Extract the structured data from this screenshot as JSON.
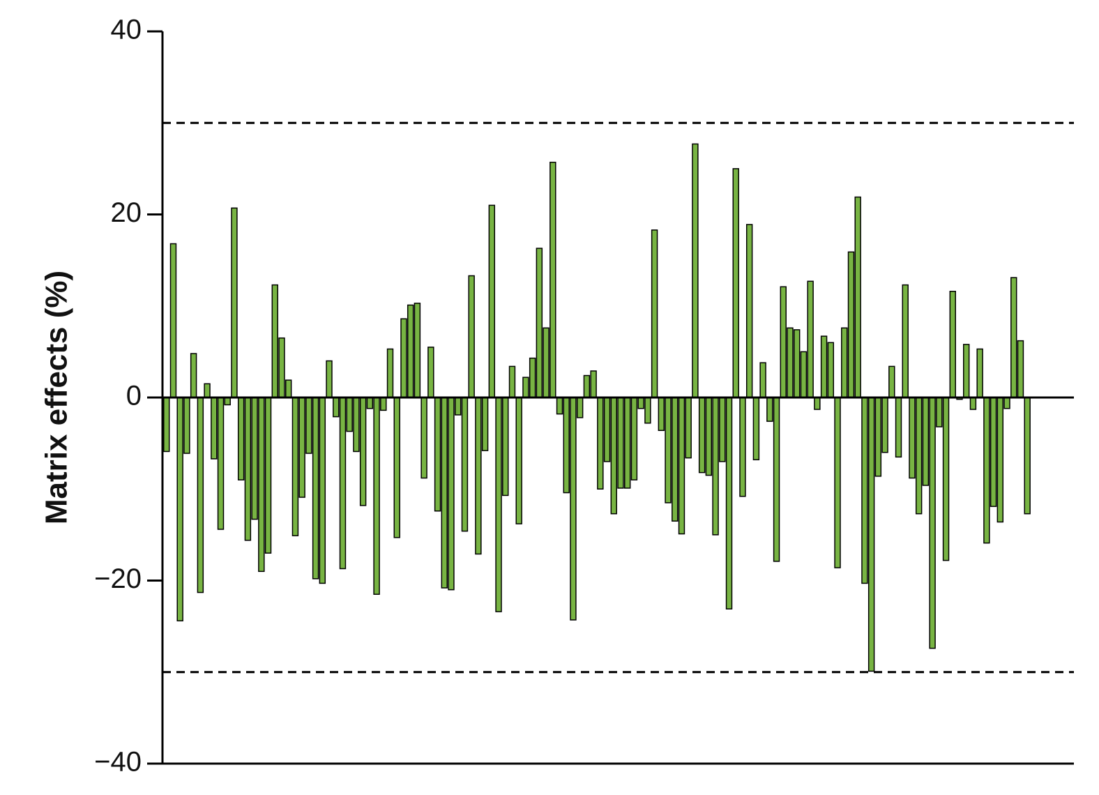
{
  "chart_data": {
    "type": "bar",
    "y_label": "Matrix effects (%)",
    "color": "#78b443",
    "ylim": [
      -40,
      40
    ],
    "yticks": [
      {
        "value": -40,
        "label": "−40"
      },
      {
        "value": -20,
        "label": "−20"
      },
      0,
      20,
      40
    ],
    "reference_lines": [
      30,
      -30
    ],
    "categories": [
      null,
      null,
      null,
      null,
      null,
      null,
      null,
      null,
      null,
      null,
      null,
      null,
      null,
      null,
      null,
      null,
      null,
      null,
      null,
      null,
      null,
      null,
      null,
      null,
      null,
      null,
      null,
      null,
      null,
      null,
      null,
      null,
      null,
      null,
      null,
      null,
      null,
      null,
      null,
      null,
      null,
      null,
      null,
      null,
      null,
      null,
      null,
      null,
      null,
      null,
      null,
      null,
      null,
      null,
      null,
      null,
      null,
      null,
      null,
      null,
      null,
      null,
      null,
      null,
      null,
      null,
      null,
      null,
      null,
      null,
      null,
      null,
      null,
      null,
      null,
      null,
      null,
      null,
      null,
      null,
      null,
      null,
      null,
      null,
      null,
      null,
      null,
      null,
      null,
      null,
      null,
      null,
      null,
      null,
      null,
      null,
      null,
      null,
      null,
      null,
      null,
      null,
      null,
      null,
      null,
      null,
      null,
      null,
      null,
      null,
      null,
      null,
      null,
      null,
      null,
      null,
      null,
      null,
      null,
      null,
      null,
      null,
      null,
      null,
      null,
      null,
      null,
      null
    ],
    "values": [
      -5.9,
      16.8,
      -24.4,
      -6.1,
      4.8,
      -21.3,
      1.5,
      -6.7,
      -14.4,
      -0.8,
      20.7,
      -9.0,
      -15.6,
      -13.3,
      -19.0,
      -17.0,
      12.3,
      6.5,
      1.9,
      -15.1,
      -10.9,
      -6.1,
      -19.8,
      -20.3,
      4.0,
      -2.1,
      -18.7,
      -3.7,
      -5.9,
      -11.8,
      -1.2,
      -21.5,
      -1.4,
      5.3,
      -15.3,
      8.6,
      10.1,
      10.3,
      -8.8,
      5.5,
      -12.4,
      -20.8,
      -21.0,
      -1.9,
      -14.6,
      13.3,
      -17.1,
      -5.8,
      21.0,
      -23.4,
      -10.7,
      3.4,
      -13.8,
      2.2,
      4.3,
      16.3,
      7.6,
      25.7,
      -1.8,
      -10.4,
      -24.3,
      -2.2,
      2.4,
      2.9,
      -10.0,
      -7.0,
      -12.7,
      -9.9,
      -9.9,
      -9.0,
      -1.2,
      -2.8,
      18.3,
      -3.6,
      -11.5,
      -13.5,
      -14.9,
      -6.6,
      27.7,
      -8.2,
      -8.5,
      -15.0,
      -7.0,
      -23.1,
      25.0,
      -10.8,
      18.9,
      -6.8,
      3.8,
      -2.6,
      -17.9,
      12.1,
      7.6,
      7.4,
      5.0,
      12.7,
      -1.3,
      6.7,
      6.0,
      -18.6,
      7.6,
      15.9,
      21.9,
      -20.3,
      -29.9,
      -8.6,
      -6.0,
      3.4,
      -6.5,
      12.3,
      -8.8,
      -12.7,
      -9.6,
      -27.4,
      -3.2,
      -17.8,
      11.6,
      -0.2,
      5.8,
      -1.3,
      5.3,
      -15.9,
      -11.9,
      -13.6,
      -1.2,
      13.1,
      6.2,
      -12.7
    ]
  }
}
